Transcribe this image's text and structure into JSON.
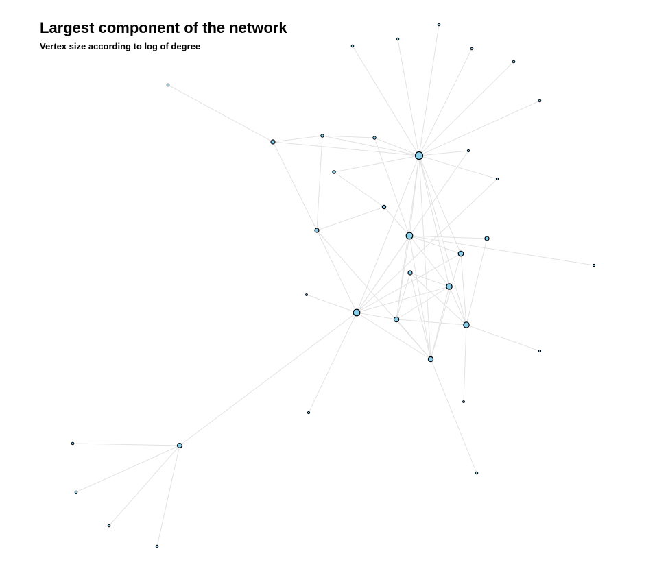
{
  "title": "Largest component of the network",
  "subtitle": "Vertex size according to log of degree",
  "colors": {
    "edge": "#e2e2e2",
    "vertex_fill": "#87ceeb",
    "vertex_stroke": "#000000"
  },
  "edges": [
    [
      "hub",
      "t1"
    ],
    [
      "hub",
      "t2"
    ],
    [
      "hub",
      "t3"
    ],
    [
      "hub",
      "t4"
    ],
    [
      "hub",
      "t5"
    ],
    [
      "hub",
      "t6"
    ],
    [
      "hub",
      "n398"
    ],
    [
      "hub",
      "n470"
    ],
    [
      "hub",
      "n546"
    ],
    [
      "hub",
      "n487"
    ],
    [
      "hub",
      "n683"
    ],
    [
      "hub",
      "n725"
    ],
    [
      "hub",
      "n597"
    ],
    [
      "hub",
      "n520"
    ],
    [
      "hub",
      "n578"
    ],
    [
      "hub",
      "n655"
    ],
    [
      "hub",
      "n672"
    ],
    [
      "hub",
      "n628"
    ],
    [
      "hub",
      "n680"
    ],
    [
      "n245",
      "n398"
    ],
    [
      "n398",
      "n470"
    ],
    [
      "n398",
      "n462"
    ],
    [
      "n470",
      "n462"
    ],
    [
      "n470",
      "n546"
    ],
    [
      "n546",
      "n597"
    ],
    [
      "n487",
      "n560"
    ],
    [
      "n560",
      "n462"
    ],
    [
      "n560",
      "n597"
    ],
    [
      "n462",
      "n520"
    ],
    [
      "n462",
      "n628"
    ],
    [
      "n597",
      "n710"
    ],
    [
      "n597",
      "n672"
    ],
    [
      "n597",
      "n655"
    ],
    [
      "n597",
      "n520"
    ],
    [
      "n597",
      "n578"
    ],
    [
      "n597",
      "n866"
    ],
    [
      "n597",
      "n628"
    ],
    [
      "n725",
      "n520"
    ],
    [
      "n683",
      "n520"
    ],
    [
      "n710",
      "n680"
    ],
    [
      "n672",
      "n680"
    ],
    [
      "n672",
      "n520"
    ],
    [
      "n672",
      "n628"
    ],
    [
      "n598",
      "n578"
    ],
    [
      "n598",
      "n655"
    ],
    [
      "n598",
      "n680"
    ],
    [
      "n598",
      "n628"
    ],
    [
      "n655",
      "n520"
    ],
    [
      "n655",
      "n578"
    ],
    [
      "n655",
      "n628"
    ],
    [
      "n655",
      "n680"
    ],
    [
      "n680",
      "n787"
    ],
    [
      "n680",
      "n676"
    ],
    [
      "n680",
      "n578"
    ],
    [
      "n520",
      "n447"
    ],
    [
      "n520",
      "n450"
    ],
    [
      "n520",
      "n578"
    ],
    [
      "n520",
      "n262"
    ],
    [
      "n578",
      "n628"
    ],
    [
      "n628",
      "n695"
    ],
    [
      "n628",
      "n520"
    ],
    [
      "n262",
      "n106"
    ],
    [
      "n262",
      "n111"
    ],
    [
      "n262",
      "n159"
    ],
    [
      "n262",
      "n229"
    ]
  ]
}
